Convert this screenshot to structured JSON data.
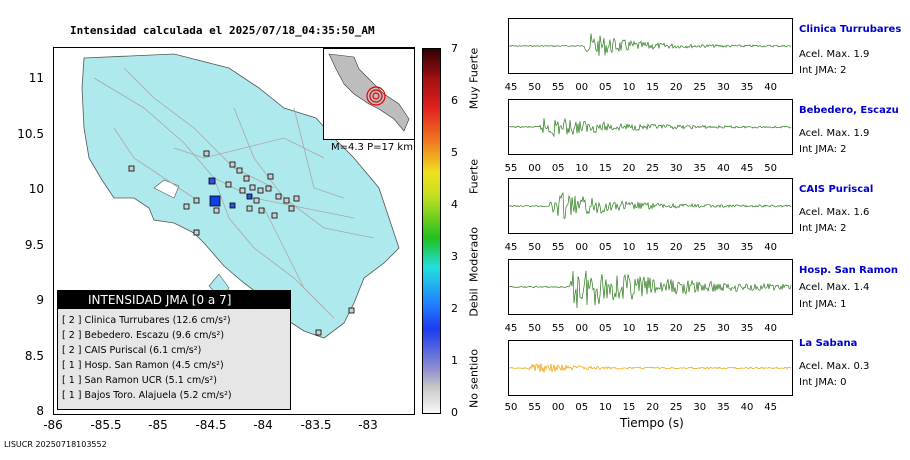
{
  "map": {
    "title": "Intensidad calculada el 2025/07/18_04:35:50_AM",
    "yticks": [
      "11",
      "10.5",
      "10",
      "9.5",
      "9",
      "8.5",
      "8"
    ],
    "xticks": [
      "-86",
      "-85.5",
      "-85",
      "-84.5",
      "-84",
      "-83.5",
      "-83"
    ],
    "magnitude_label": "M=4.3  P=17 km",
    "colors": {
      "land": "#aee9ee",
      "roads": "#a8a8a8",
      "epicenter": "#1040e0"
    }
  },
  "legend": {
    "title": "INTENSIDAD JMA [0 a 7]",
    "rows": [
      {
        "level": "[ 2 ]",
        "text": "Clinica Turrubares (12.6 cm/s²)"
      },
      {
        "level": "[ 2 ]",
        "text": "Bebedero. Escazu (9.6 cm/s²)"
      },
      {
        "level": "[ 2 ]",
        "text": "CAIS Puriscal (6.1 cm/s²)"
      },
      {
        "level": "[ 1 ]",
        "text": "Hosp. San Ramon (4.5 cm/s²)"
      },
      {
        "level": "[ 1 ]",
        "text": "San Ramon UCR (5.1 cm/s²)"
      },
      {
        "level": "[ 1 ]",
        "text": "Bajos Toro. Alajuela (5.2 cm/s²)"
      }
    ]
  },
  "colorbar": {
    "numbers": [
      "7",
      "6",
      "5",
      "4",
      "3",
      "2",
      "1",
      "0"
    ],
    "words": [
      "Muy Fuerte",
      "Fuerte",
      "Moderado",
      "Debil",
      "No sentido"
    ]
  },
  "stations": [
    {
      "name": "Clinica Turrubares",
      "acel": "Acel. Max. 1.9",
      "int": "Int JMA: 2",
      "color": "#2a7a1a",
      "ticks": [
        "45",
        "50",
        "55",
        "00",
        "05",
        "10",
        "15",
        "20",
        "25",
        "30",
        "35",
        "40"
      ]
    },
    {
      "name": "Bebedero, Escazu",
      "acel": "Acel. Max. 1.9",
      "int": "Int JMA: 2",
      "color": "#2a7a1a",
      "ticks": [
        "55",
        "00",
        "05",
        "10",
        "15",
        "20",
        "25",
        "30",
        "35",
        "40",
        "45",
        "50"
      ]
    },
    {
      "name": "CAIS Puriscal",
      "acel": "Acel. Max. 1.6",
      "int": "Int JMA: 2",
      "color": "#2a7a1a",
      "ticks": [
        "45",
        "50",
        "55",
        "00",
        "05",
        "10",
        "15",
        "20",
        "25",
        "30",
        "35",
        "40"
      ]
    },
    {
      "name": "Hosp. San Ramon",
      "acel": "Acel. Max. 1.4",
      "int": "Int JMA: 1",
      "color": "#2a7a1a",
      "ticks": [
        "45",
        "50",
        "55",
        "00",
        "05",
        "10",
        "15",
        "20",
        "25",
        "30",
        "35",
        "40"
      ]
    },
    {
      "name": "La Sabana",
      "acel": "Acel. Max. 0.3",
      "int": "Int JMA: 0",
      "color": "#f0a000",
      "ticks": [
        "50",
        "55",
        "00",
        "05",
        "10",
        "15",
        "20",
        "25",
        "30",
        "35",
        "40",
        "45"
      ]
    }
  ],
  "xlabel": "Tiempo (s)",
  "footer": "LISUCR 20250718103552"
}
